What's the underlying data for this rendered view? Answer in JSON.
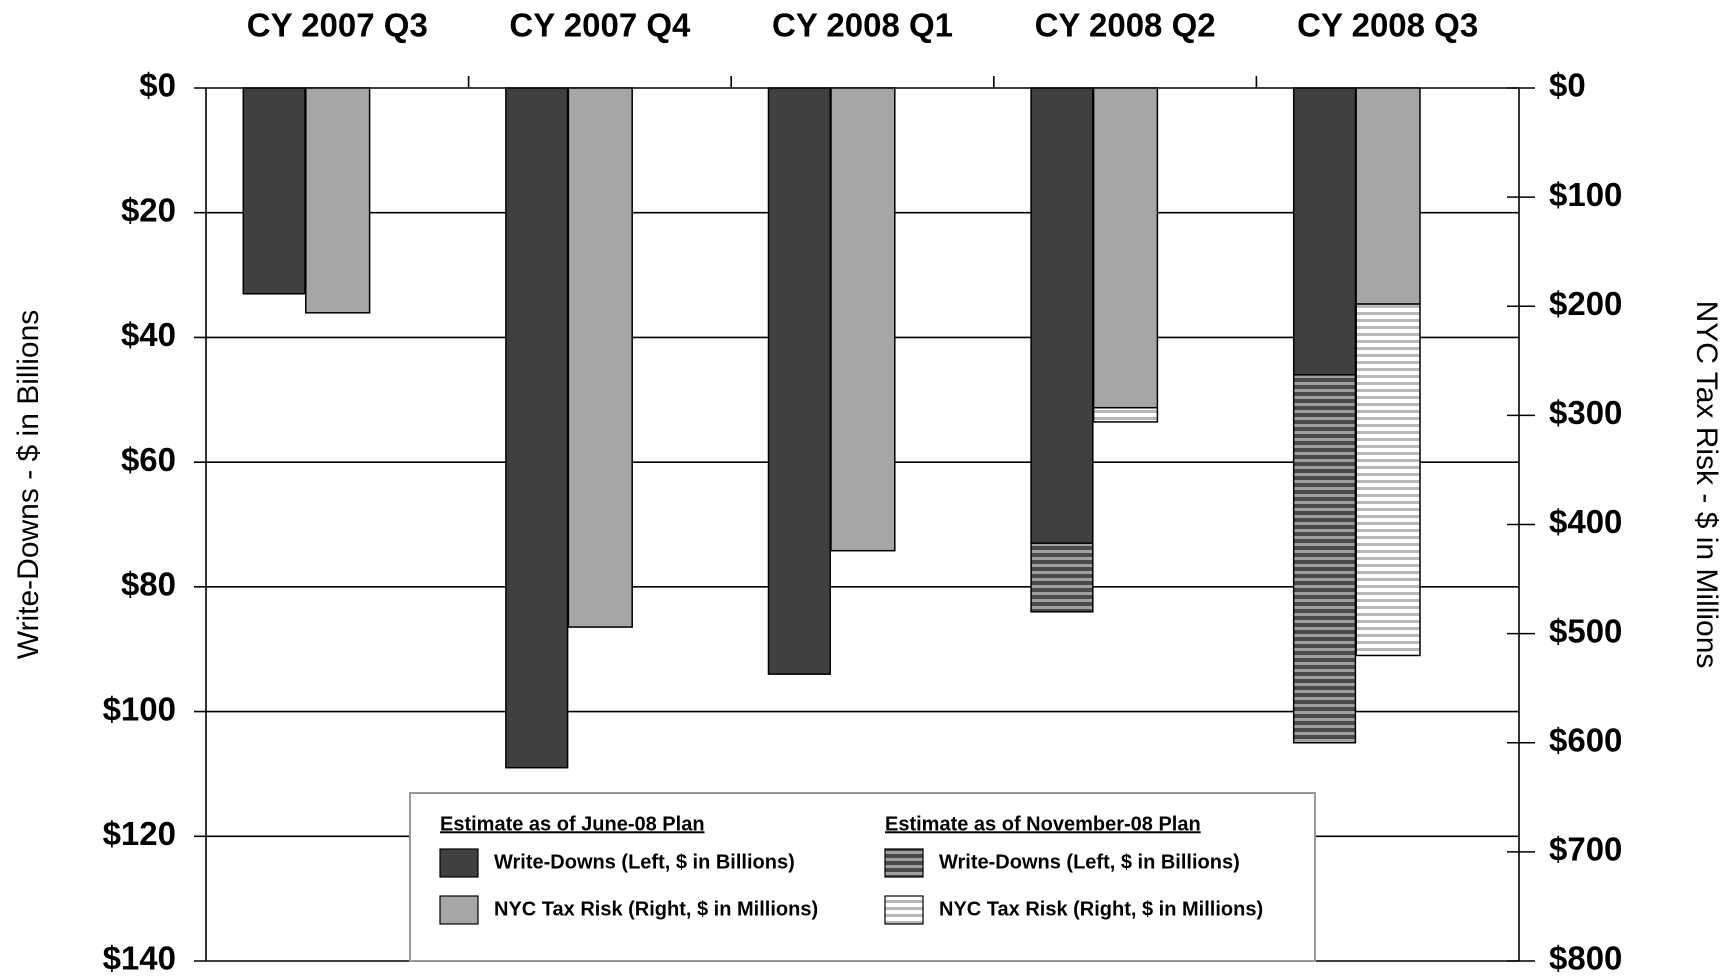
{
  "chart_data": {
    "type": "bar",
    "inverted": true,
    "categories": [
      "CY 2007 Q3",
      "CY 2007 Q4",
      "CY 2008 Q1",
      "CY 2008 Q2",
      "CY 2008 Q3"
    ],
    "y_label": "Write-Downs - $ in Billions",
    "y2_label": "NYC Tax Risk - $ in Millions",
    "ylim": [
      0,
      140
    ],
    "yticks": [
      {
        "value": 0,
        "label": "$0"
      },
      {
        "value": 20,
        "label": "$20"
      },
      {
        "value": 40,
        "label": "$40"
      },
      {
        "value": 60,
        "label": "$60"
      },
      {
        "value": 80,
        "label": "$80"
      },
      {
        "value": 100,
        "label": "$100"
      },
      {
        "value": 120,
        "label": "$120"
      },
      {
        "value": 140,
        "label": "$140"
      }
    ],
    "y2lim": [
      0,
      800
    ],
    "y2ticks": [
      {
        "value": 0,
        "label": "$0"
      },
      {
        "value": 100,
        "label": "$100"
      },
      {
        "value": 200,
        "label": "$200"
      },
      {
        "value": 300,
        "label": "$300"
      },
      {
        "value": 400,
        "label": "$400"
      },
      {
        "value": 500,
        "label": "$500"
      },
      {
        "value": 600,
        "label": "$600"
      },
      {
        "value": 700,
        "label": "$700"
      },
      {
        "value": 800,
        "label": "$800"
      }
    ],
    "grid": true,
    "groups": [
      {
        "name": "Estimate as of June-08 Plan",
        "series": [
          {
            "name": "Write-Downs (Left, $ in Billions)",
            "color": "#404040",
            "axis": "y",
            "values": [
              33,
              109,
              94,
              73,
              46
            ]
          },
          {
            "name": "NYC Tax Risk (Right, $ in Millions)",
            "color": "#a6a6a6",
            "axis": "y2",
            "values": [
              206,
              494,
              424,
              293,
              198
            ]
          }
        ]
      },
      {
        "name": "Estimate as of November-08 Plan",
        "series": [
          {
            "name": "Write-Downs (Left, $ in Billions)",
            "color": "#4a4a4a",
            "stripe_color": "#a0a0a0",
            "pattern": "stripes",
            "axis": "y",
            "values": [
              null,
              null,
              null,
              11,
              59
            ]
          },
          {
            "name": "NYC Tax Risk (Right, $ in Millions)",
            "color": "#ffffff",
            "stripe_color": "#b8b8b8",
            "pattern": "stripes",
            "axis": "y2",
            "values": [
              null,
              null,
              null,
              13,
              322
            ]
          }
        ]
      }
    ]
  }
}
